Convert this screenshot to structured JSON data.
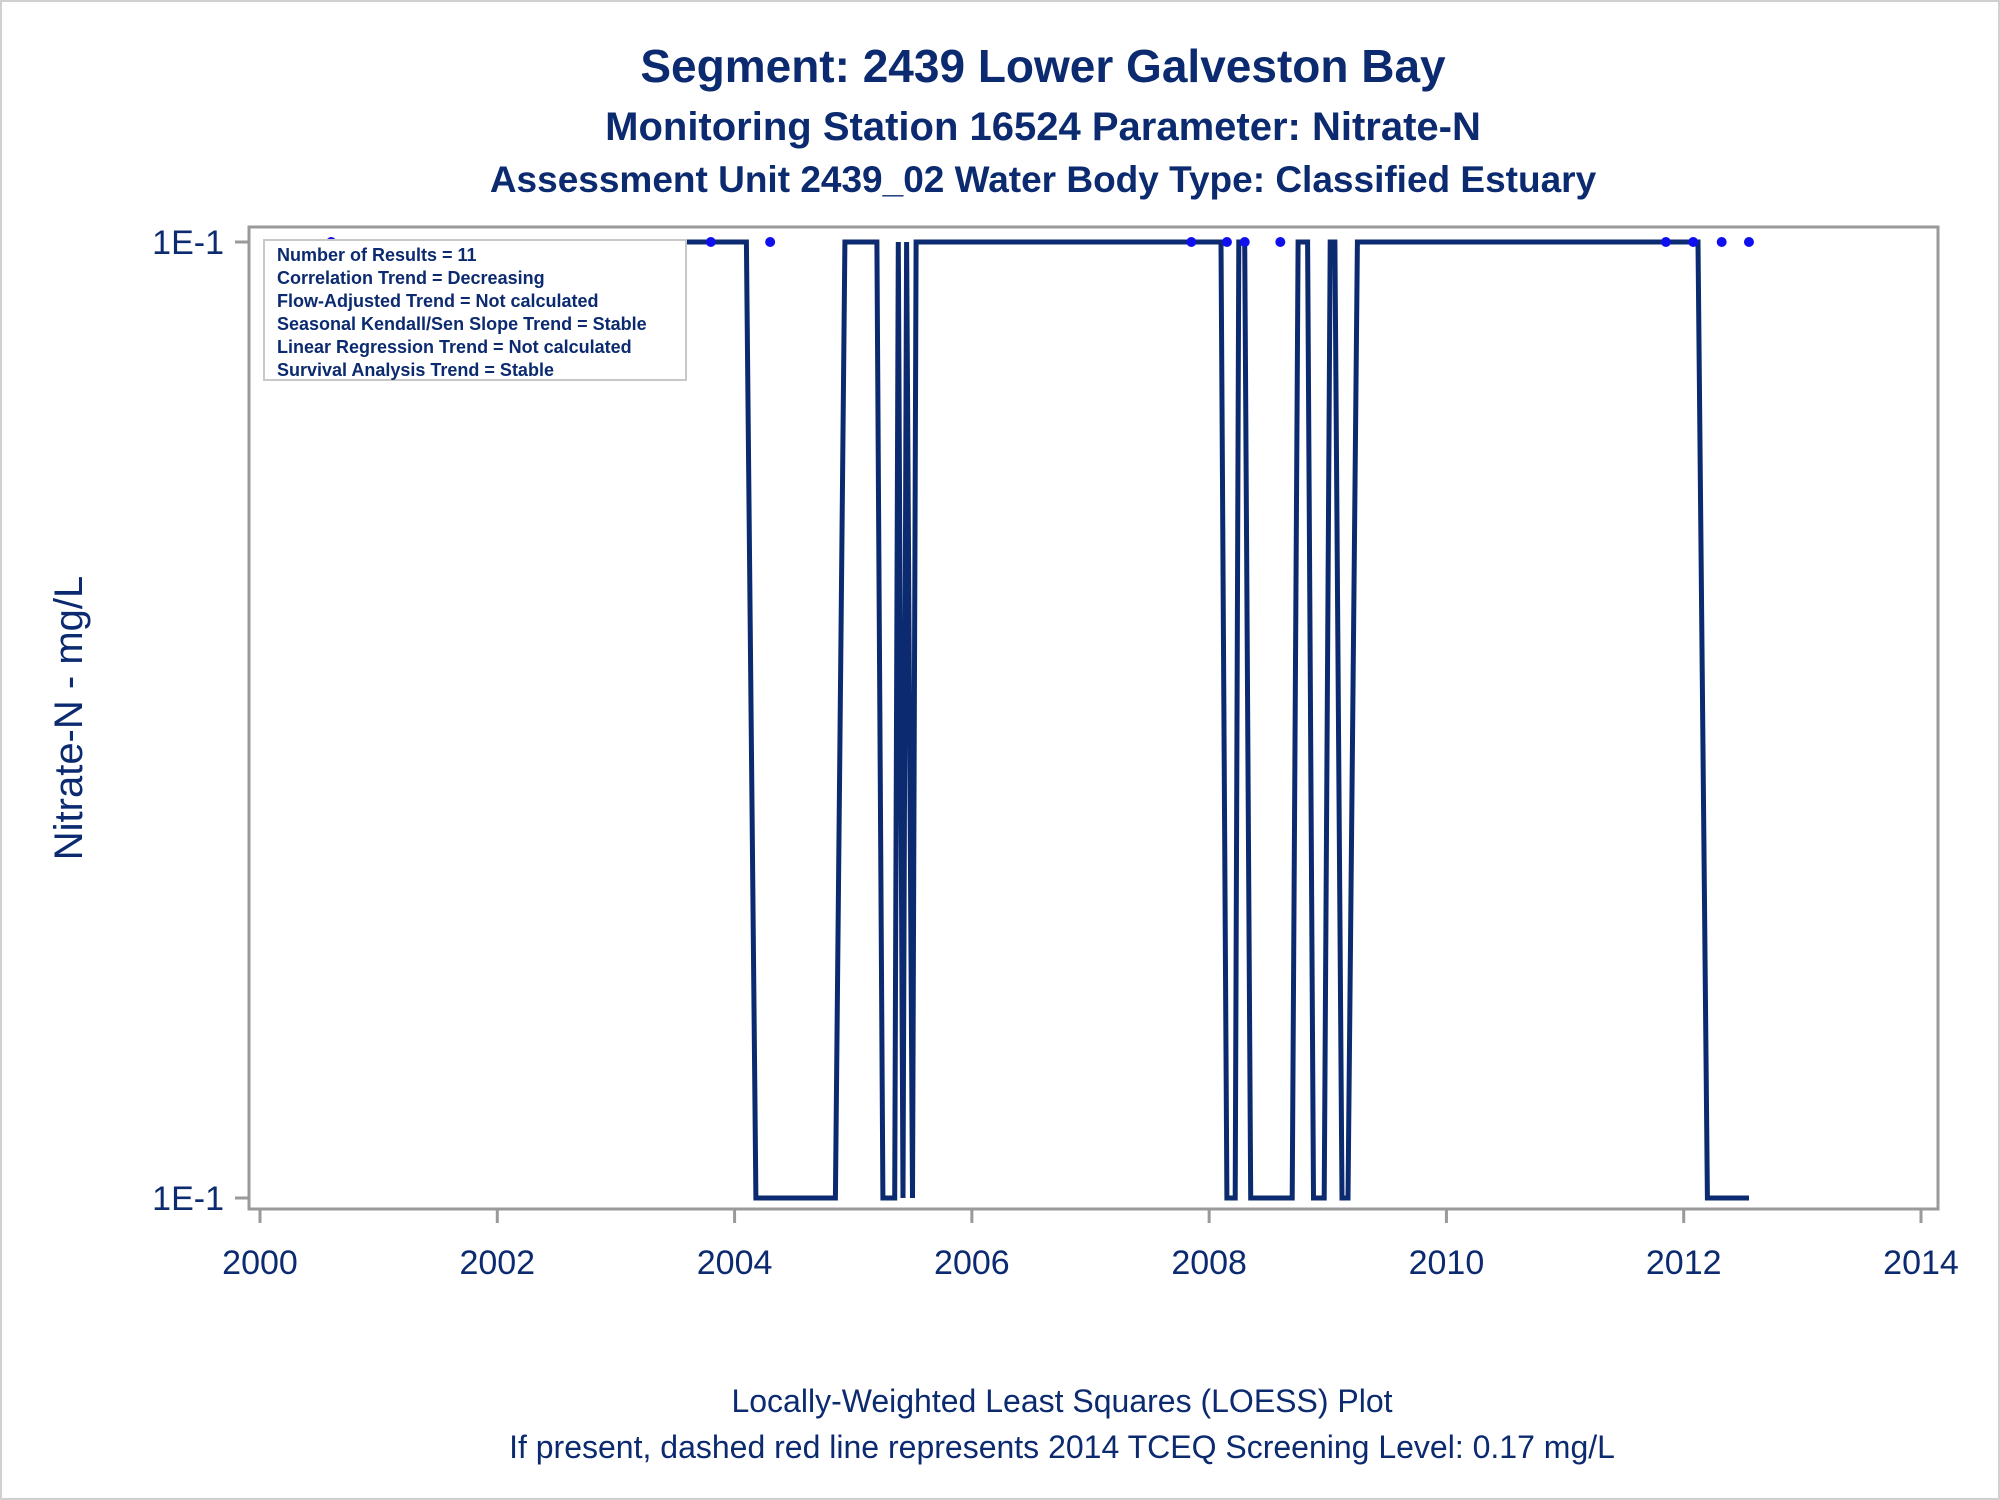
{
  "chart_data": {
    "type": "line",
    "title": "Segment: 2439  Lower Galveston Bay",
    "subtitle": "Monitoring Station 16524 Parameter: Nitrate-N",
    "subtitle2": "Assessment Unit 2439_02   Water Body Type: Classified Estuary",
    "ylabel": "Nitrate-N - mg/L",
    "xlabel": "",
    "footnote1": "Locally-Weighted Least Squares (LOESS) Plot",
    "footnote2": "If present, dashed red line represents 2014 TCEQ Screening Level: 0.17 mg/L",
    "xlim": [
      2000,
      2014
    ],
    "x_ticks": [
      2000,
      2002,
      2004,
      2006,
      2008,
      2010,
      2012,
      2014
    ],
    "y_ticks": [
      {
        "value": "high",
        "label": "1E-1"
      },
      {
        "value": "low",
        "label": "1E-1"
      }
    ],
    "grid": false,
    "stats_box": [
      "Number of Results = 11",
      "Correlation Trend = Decreasing",
      "Flow-Adjusted Trend = Not calculated",
      "Seasonal Kendall/Sen Slope Trend = Stable",
      "Linear Regression Trend = Not calculated",
      "Survival Analysis Trend = Stable"
    ],
    "stats_box_placement": "top-left",
    "points": {
      "x": [
        2000.6,
        2003.8,
        2004.3,
        2007.85,
        2008.15,
        2008.3,
        2008.6,
        2011.85,
        2012.08,
        2012.32,
        2012.55
      ],
      "y": [
        0.1,
        0.1,
        0.1,
        0.1,
        0.1,
        0.1,
        0.1,
        0.1,
        0.1,
        0.1,
        0.1
      ],
      "color": "#1010ee"
    },
    "loess_line": {
      "color": "#0b2a6f",
      "x": [
        2000.6,
        2004.1,
        2004.18,
        2004.85,
        2004.93,
        2005.2,
        2005.25,
        2005.35,
        2005.38,
        2005.42,
        2005.45,
        2005.5,
        2005.53,
        2005.57,
        2005.62,
        2008.1,
        2008.15,
        2008.22,
        2008.25,
        2008.3,
        2008.35,
        2008.7,
        2008.75,
        2008.83,
        2008.88,
        2008.97,
        2009.02,
        2009.06,
        2009.12,
        2009.17,
        2009.25,
        2012.12,
        2012.2,
        2012.55
      ],
      "level": [
        "high",
        "high",
        "low",
        "low",
        "high",
        "high",
        "low",
        "low",
        "high",
        "low",
        "high",
        "low",
        "high",
        "high",
        "high",
        "high",
        "low",
        "low",
        "high",
        "high",
        "low",
        "low",
        "high",
        "high",
        "low",
        "low",
        "high",
        "high",
        "low",
        "low",
        "high",
        "high",
        "low",
        "low"
      ]
    }
  }
}
